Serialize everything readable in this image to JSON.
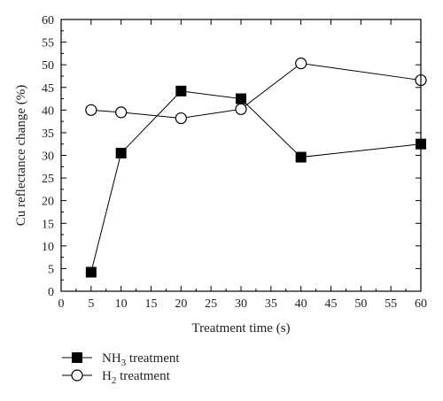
{
  "chart_data": {
    "type": "line",
    "xlabel": "Treatment time (s)",
    "ylabel": "Cu reflectance change (%)",
    "xlim": [
      0,
      60
    ],
    "ylim": [
      0,
      60
    ],
    "xticks": [
      0,
      5,
      10,
      15,
      20,
      25,
      30,
      35,
      40,
      45,
      50,
      55,
      60
    ],
    "yticks": [
      0,
      5,
      10,
      15,
      20,
      25,
      30,
      35,
      40,
      45,
      50,
      55,
      60
    ],
    "grid": false,
    "legend_position": "bottom-left",
    "series": [
      {
        "name_main": "NH",
        "name_sub": "3",
        "name_rest": " treatment",
        "marker": "filled-square",
        "color": "#000000",
        "x": [
          5,
          10,
          20,
          30,
          40,
          60
        ],
        "y": [
          4.2,
          30.5,
          44.2,
          42.5,
          29.6,
          32.5
        ]
      },
      {
        "name_main": "H",
        "name_sub": "2",
        "name_rest": " treatment",
        "marker": "open-circle",
        "color": "#000000",
        "x": [
          5,
          10,
          20,
          30,
          40,
          60
        ],
        "y": [
          40.0,
          39.5,
          38.2,
          40.2,
          50.3,
          46.6
        ]
      }
    ]
  }
}
